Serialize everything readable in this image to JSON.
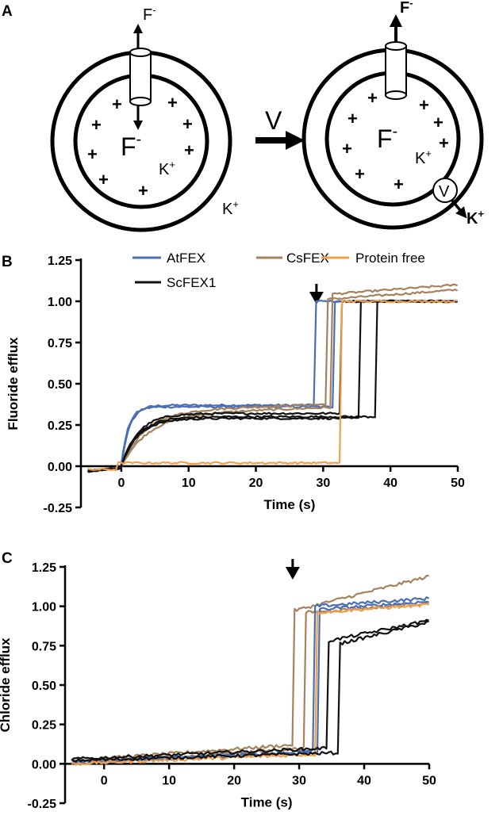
{
  "panels": {
    "a": {
      "letter": "A"
    },
    "b": {
      "letter": "B"
    },
    "c": {
      "letter": "C"
    }
  },
  "diagram": {
    "fluoride_label": "F",
    "fluoride_sup": "-",
    "potassium_label": "K",
    "potassium_sup": "+",
    "plus_sign": "+",
    "valinomycin": "V"
  },
  "legend": [
    {
      "name": "AtFEX",
      "color": "#4a6fb5"
    },
    {
      "name": "CsFEX",
      "color": "#a6825c"
    },
    {
      "name": "Protein free",
      "color": "#f0a04b"
    },
    {
      "name": "ScFEX1",
      "color": "#111111"
    }
  ],
  "chart_data": [
    {
      "panel": "B",
      "type": "line",
      "xlabel": "Time (s)",
      "ylabel": "Fluoride efflux",
      "xlim": [
        -6,
        50
      ],
      "ylim": [
        -0.25,
        1.25
      ],
      "xticks": [
        0,
        10,
        20,
        30,
        40,
        50
      ],
      "yticks": [
        -0.25,
        0.0,
        0.25,
        0.5,
        0.75,
        1.0,
        1.25
      ],
      "ytick_labels": [
        "-0.25",
        "0.00",
        "0.25",
        "0.50",
        "0.75",
        "1.00",
        "1.25"
      ],
      "arrow_time": 29,
      "series": [
        {
          "name": "AtFEX",
          "color": "#4a6fb5",
          "plateau": 0.37,
          "jump": 28.8,
          "final": 1.0,
          "tau": 1.2,
          "slope": 0.0
        },
        {
          "name": "AtFEX",
          "color": "#4a6fb5",
          "plateau": 0.36,
          "jump": 31.5,
          "final": 1.0,
          "tau": 1.0,
          "slope": 0.0
        },
        {
          "name": "CsFEX",
          "color": "#a6825c",
          "plateau": 0.33,
          "jump": 30.5,
          "final": 1.07,
          "tau": 3.5,
          "slope": 0.0015
        },
        {
          "name": "CsFEX",
          "color": "#a6825c",
          "plateau": 0.31,
          "jump": 31.2,
          "final": 1.1,
          "tau": 4.0,
          "slope": 0.0015
        },
        {
          "name": "ScFEX1",
          "color": "#111111",
          "plateau": 0.32,
          "jump": 32.5,
          "final": 1.0,
          "tau": 2.5,
          "slope": 0.0
        },
        {
          "name": "ScFEX1",
          "color": "#111111",
          "plateau": 0.29,
          "jump": 35.5,
          "final": 1.0,
          "tau": 2.5,
          "slope": 0.0
        },
        {
          "name": "ScFEX1",
          "color": "#111111",
          "plateau": 0.3,
          "jump": 38.0,
          "final": 1.0,
          "tau": 2.5,
          "slope": 0.0
        },
        {
          "name": "Protein free",
          "color": "#f0a04b",
          "plateau": 0.02,
          "jump": 32.8,
          "final": 1.0,
          "tau": 0,
          "slope": 0.0
        }
      ]
    },
    {
      "panel": "C",
      "type": "line",
      "xlabel": "Time (s)",
      "ylabel": "Chloride efflux",
      "xlim": [
        -6,
        50
      ],
      "ylim": [
        -0.25,
        1.25
      ],
      "xticks": [
        0,
        10,
        20,
        30,
        40,
        50
      ],
      "yticks": [
        -0.25,
        0.0,
        0.25,
        0.5,
        0.75,
        1.0,
        1.25
      ],
      "ytick_labels": [
        "-0.25",
        "0.00",
        "0.25",
        "0.50",
        "0.75",
        "1.00",
        "1.25"
      ],
      "arrow_time": 29,
      "series": [
        {
          "name": "CsFEX",
          "color": "#a6825c",
          "start": 0.02,
          "plateau": 0.12,
          "jump": 29.0,
          "final": 1.19,
          "jumpTo": 0.97,
          "slope": 0.011
        },
        {
          "name": "CsFEX",
          "color": "#a6825c",
          "start": 0.0,
          "plateau": 0.1,
          "jump": 31.0,
          "final": 1.02,
          "jumpTo": 0.96,
          "slope": 0.003
        },
        {
          "name": "AtFEX",
          "color": "#4a6fb5",
          "start": 0.01,
          "plateau": 0.08,
          "jump": 32.3,
          "final": 1.05,
          "jumpTo": 1.0,
          "slope": 0.003
        },
        {
          "name": "AtFEX",
          "color": "#4a6fb5",
          "start": 0.01,
          "plateau": 0.07,
          "jump": 33.0,
          "final": 1.03,
          "jumpTo": 0.98,
          "slope": 0.003
        },
        {
          "name": "Protein free",
          "color": "#f0a04b",
          "start": 0.0,
          "plateau": 0.06,
          "jump": 32.6,
          "final": 1.01,
          "jumpTo": 0.96,
          "slope": 0.003
        },
        {
          "name": "ScFEX1",
          "color": "#111111",
          "start": 0.03,
          "plateau": 0.1,
          "jump": 34.5,
          "final": 0.91,
          "jumpTo": 0.78,
          "slope": 0.008
        },
        {
          "name": "ScFEX1",
          "color": "#111111",
          "start": 0.02,
          "plateau": 0.07,
          "jump": 36.0,
          "final": 0.9,
          "jumpTo": 0.76,
          "slope": 0.008
        }
      ]
    }
  ]
}
